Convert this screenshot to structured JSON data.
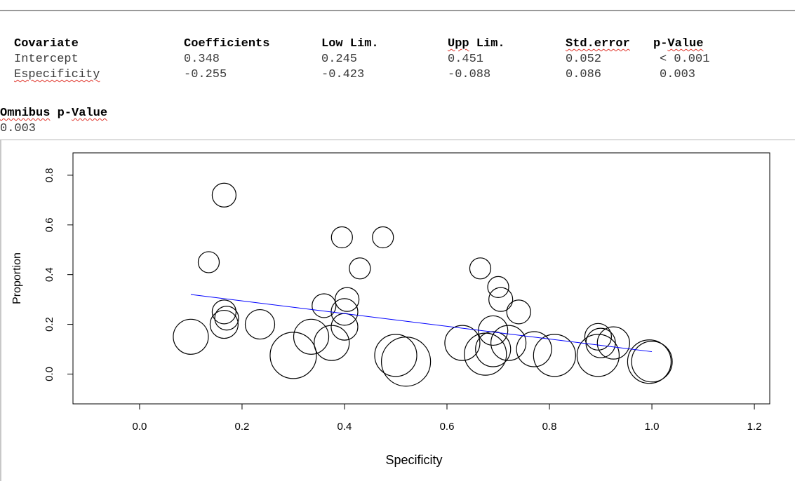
{
  "table": {
    "headers": [
      "Covariate",
      "Coefficients",
      "Low Lim.",
      "Upp Lim.",
      "Std.error",
      "p-Value"
    ],
    "rows": [
      [
        "Intercept",
        "0.348",
        "0.245",
        "0.451",
        "0.052",
        "< 0.001"
      ],
      [
        "Especificity",
        "-0.255",
        "-0.423",
        "-0.088",
        "0.086",
        "0.003"
      ]
    ],
    "omnibus_label": "Omnibus p-Value",
    "omnibus_value": "0.003"
  },
  "chart_data": {
    "type": "scatter",
    "xlabel": "Specificity",
    "ylabel": "Proportion",
    "xlim": [
      -0.13,
      1.23
    ],
    "ylim": [
      -0.12,
      0.89
    ],
    "xticks": [
      "0.0",
      "0.2",
      "0.4",
      "0.6",
      "0.8",
      "1.0",
      "1.2"
    ],
    "yticks": [
      "0.0",
      "0.2",
      "0.4",
      "0.6",
      "0.8"
    ],
    "grid": false,
    "marker": "open circle, size proportional to weight",
    "points": [
      {
        "x": 0.1,
        "y": 0.15,
        "r": 1.0
      },
      {
        "x": 0.135,
        "y": 0.45,
        "r": 0.6
      },
      {
        "x": 0.165,
        "y": 0.72,
        "r": 0.68
      },
      {
        "x": 0.165,
        "y": 0.25,
        "r": 0.68
      },
      {
        "x": 0.165,
        "y": 0.2,
        "r": 0.8
      },
      {
        "x": 0.17,
        "y": 0.225,
        "r": 0.68
      },
      {
        "x": 0.235,
        "y": 0.2,
        "r": 0.84
      },
      {
        "x": 0.3,
        "y": 0.075,
        "r": 1.32
      },
      {
        "x": 0.335,
        "y": 0.15,
        "r": 1.0
      },
      {
        "x": 0.36,
        "y": 0.275,
        "r": 0.68
      },
      {
        "x": 0.375,
        "y": 0.125,
        "r": 1.0
      },
      {
        "x": 0.395,
        "y": 0.55,
        "r": 0.6
      },
      {
        "x": 0.4,
        "y": 0.25,
        "r": 0.76
      },
      {
        "x": 0.4,
        "y": 0.19,
        "r": 0.76
      },
      {
        "x": 0.405,
        "y": 0.3,
        "r": 0.68
      },
      {
        "x": 0.43,
        "y": 0.425,
        "r": 0.6
      },
      {
        "x": 0.475,
        "y": 0.55,
        "r": 0.6
      },
      {
        "x": 0.5,
        "y": 0.075,
        "r": 1.2
      },
      {
        "x": 0.52,
        "y": 0.05,
        "r": 1.4
      },
      {
        "x": 0.63,
        "y": 0.125,
        "r": 1.0
      },
      {
        "x": 0.665,
        "y": 0.425,
        "r": 0.6
      },
      {
        "x": 0.675,
        "y": 0.08,
        "r": 1.2
      },
      {
        "x": 0.69,
        "y": 0.175,
        "r": 0.84
      },
      {
        "x": 0.69,
        "y": 0.1,
        "r": 1.0
      },
      {
        "x": 0.7,
        "y": 0.35,
        "r": 0.6
      },
      {
        "x": 0.705,
        "y": 0.3,
        "r": 0.68
      },
      {
        "x": 0.72,
        "y": 0.125,
        "r": 1.0
      },
      {
        "x": 0.74,
        "y": 0.25,
        "r": 0.68
      },
      {
        "x": 0.77,
        "y": 0.1,
        "r": 1.0
      },
      {
        "x": 0.81,
        "y": 0.075,
        "r": 1.2
      },
      {
        "x": 0.895,
        "y": 0.15,
        "r": 0.76
      },
      {
        "x": 0.895,
        "y": 0.075,
        "r": 1.2
      },
      {
        "x": 0.9,
        "y": 0.125,
        "r": 0.84
      },
      {
        "x": 0.925,
        "y": 0.125,
        "r": 0.92
      },
      {
        "x": 0.995,
        "y": 0.05,
        "r": 1.24
      },
      {
        "x": 1.0,
        "y": 0.05,
        "r": 1.16
      }
    ],
    "fit_line": {
      "x": [
        0.1,
        1.0
      ],
      "y": [
        0.32,
        0.09
      ],
      "color": "#0000ff"
    }
  }
}
